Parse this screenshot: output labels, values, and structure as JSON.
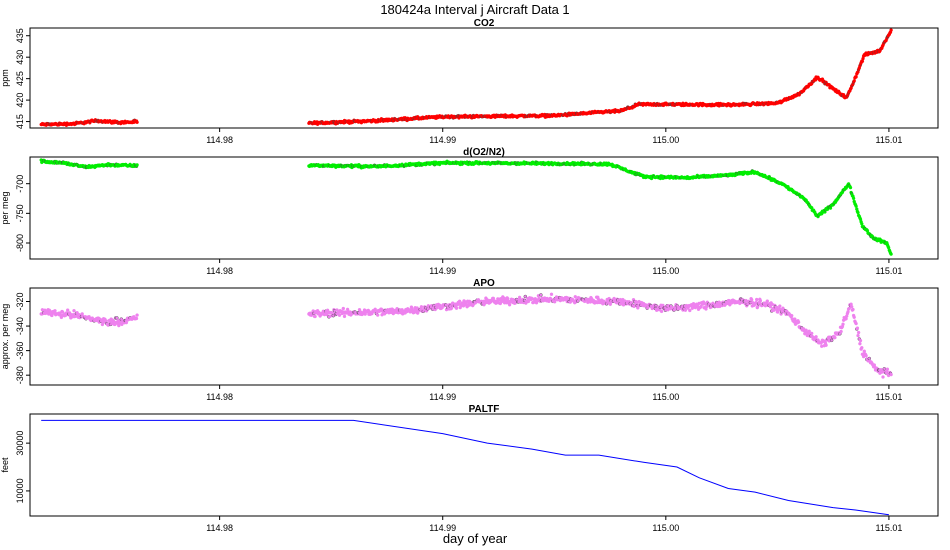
{
  "title": "180424a   Interval j Aircraft Data 1",
  "xlabel": "day of year",
  "chart_data": [
    {
      "type": "scatter",
      "title": "CO2",
      "ylabel": "ppm",
      "color": "#ff0000",
      "xlim": [
        114.9715,
        115.0122
      ],
      "ylim": [
        413.5,
        436.8
      ],
      "x_ticks": [
        114.98,
        114.99,
        115.0,
        115.01
      ],
      "x_tick_labels": [
        "114.98",
        "114.99",
        "115.00",
        "115.01"
      ],
      "y_ticks": [
        415,
        420,
        425,
        430,
        435
      ],
      "y_tick_labels": [
        "415",
        "420",
        "425",
        "430",
        "435"
      ],
      "noise": 0.25,
      "series": [
        {
          "segments": [
            [
              [
                114.972,
                414.3
              ],
              [
                114.9735,
                414.5
              ],
              [
                114.9745,
                415.2
              ],
              [
                114.9755,
                414.8
              ],
              [
                114.9763,
                414.9
              ]
            ],
            [
              [
                114.984,
                414.6
              ],
              [
                114.987,
                415.2
              ],
              [
                114.99,
                416.1
              ],
              [
                114.995,
                416.4
              ],
              [
                114.998,
                417.5
              ],
              [
                114.9988,
                419.0
              ],
              [
                115.0,
                419.0
              ],
              [
                115.003,
                418.9
              ],
              [
                115.005,
                419.3
              ],
              [
                115.006,
                421.5
              ],
              [
                115.0068,
                425.4
              ],
              [
                115.0074,
                423.0
              ],
              [
                115.0081,
                420.5
              ],
              [
                115.0084,
                424.0
              ],
              [
                115.0089,
                430.5
              ],
              [
                115.0096,
                431.5
              ],
              [
                115.0098,
                433.5
              ],
              [
                115.0101,
                436.2
              ]
            ]
          ]
        }
      ]
    },
    {
      "type": "scatter",
      "title": "d(O2/N2)",
      "ylabel": "per meg",
      "color": "#00ee00",
      "xlim": [
        114.9715,
        115.0122
      ],
      "ylim": [
        -827,
        -655
      ],
      "x_ticks": [
        114.98,
        114.99,
        115.0,
        115.01
      ],
      "x_tick_labels": [
        "114.98",
        "114.99",
        "115.00",
        "115.01"
      ],
      "y_ticks": [
        -700,
        -750,
        -800
      ],
      "y_tick_labels": [
        "-700",
        "-750",
        "-800"
      ],
      "noise": 1.8,
      "series": [
        {
          "segments": [
            [
              [
                114.972,
                -662
              ],
              [
                114.973,
                -665
              ],
              [
                114.974,
                -672
              ],
              [
                114.975,
                -668
              ],
              [
                114.9763,
                -670
              ]
            ],
            [
              [
                114.984,
                -669
              ],
              [
                114.987,
                -671
              ],
              [
                114.99,
                -665
              ],
              [
                114.995,
                -666
              ],
              [
                114.9975,
                -667
              ],
              [
                114.999,
                -688
              ],
              [
                115.001,
                -690
              ],
              [
                115.003,
                -685
              ],
              [
                115.004,
                -680
              ],
              [
                115.0052,
                -700
              ],
              [
                115.0062,
                -725
              ],
              [
                115.0068,
                -755
              ],
              [
                115.0075,
                -735
              ],
              [
                115.0082,
                -700
              ],
              [
                115.0088,
                -770
              ],
              [
                115.0093,
                -792
              ],
              [
                115.0099,
                -800
              ],
              [
                115.0101,
                -820
              ]
            ]
          ]
        }
      ]
    },
    {
      "type": "scatter",
      "title": "APO",
      "ylabel": "approx. per meg",
      "color": "#ee82ee",
      "xlim": [
        114.9715,
        115.0122
      ],
      "ylim": [
        -388,
        -309
      ],
      "x_ticks": [
        114.98,
        114.99,
        115.0,
        115.01
      ],
      "x_tick_labels": [
        "114.98",
        "114.99",
        "115.00",
        "115.01"
      ],
      "y_ticks": [
        -320,
        -340,
        -360,
        -380
      ],
      "y_tick_labels": [
        "-320",
        "-340",
        "-360",
        "-380"
      ],
      "noise": 2.5,
      "series": [
        {
          "segments": [
            [
              [
                114.972,
                -328
              ],
              [
                114.9735,
                -331
              ],
              [
                114.975,
                -337
              ],
              [
                114.9763,
                -334
              ]
            ],
            [
              [
                114.984,
                -330
              ],
              [
                114.988,
                -328
              ],
              [
                114.992,
                -320
              ],
              [
                114.995,
                -318
              ],
              [
                114.998,
                -320
              ],
              [
                115.0,
                -326
              ],
              [
                115.002,
                -323
              ],
              [
                115.0035,
                -320
              ],
              [
                115.0045,
                -322
              ],
              [
                115.0055,
                -330
              ],
              [
                115.0063,
                -345
              ],
              [
                115.007,
                -355
              ],
              [
                115.0078,
                -345
              ],
              [
                115.0083,
                -322
              ],
              [
                115.0088,
                -360
              ],
              [
                115.0094,
                -375
              ],
              [
                115.0101,
                -380
              ]
            ]
          ]
        }
      ]
    },
    {
      "type": "line",
      "title": "PALTF",
      "ylabel": "feet",
      "color": "#0000ff",
      "xlim": [
        114.9715,
        115.0122
      ],
      "ylim": [
        -500,
        42200
      ],
      "x_ticks": [
        114.98,
        114.99,
        115.0,
        115.01
      ],
      "x_tick_labels": [
        "114.98",
        "114.99",
        "115.00",
        "115.01"
      ],
      "y_ticks": [
        10000,
        30000
      ],
      "y_tick_labels": [
        "10000",
        "30000"
      ],
      "series": [
        {
          "segments": [
            [
              [
                114.972,
                39500
              ],
              [
                114.986,
                39500
              ],
              [
                114.99,
                34000
              ],
              [
                114.992,
                30000
              ],
              [
                114.994,
                27500
              ],
              [
                114.9955,
                25000
              ],
              [
                114.997,
                25000
              ],
              [
                114.999,
                22000
              ],
              [
                115.0005,
                20000
              ],
              [
                115.0015,
                15500
              ],
              [
                115.0028,
                11000
              ],
              [
                115.004,
                9500
              ],
              [
                115.0055,
                6000
              ],
              [
                115.0075,
                3000
              ],
              [
                115.0085,
                2000
              ],
              [
                115.01,
                0
              ]
            ]
          ]
        }
      ]
    }
  ]
}
